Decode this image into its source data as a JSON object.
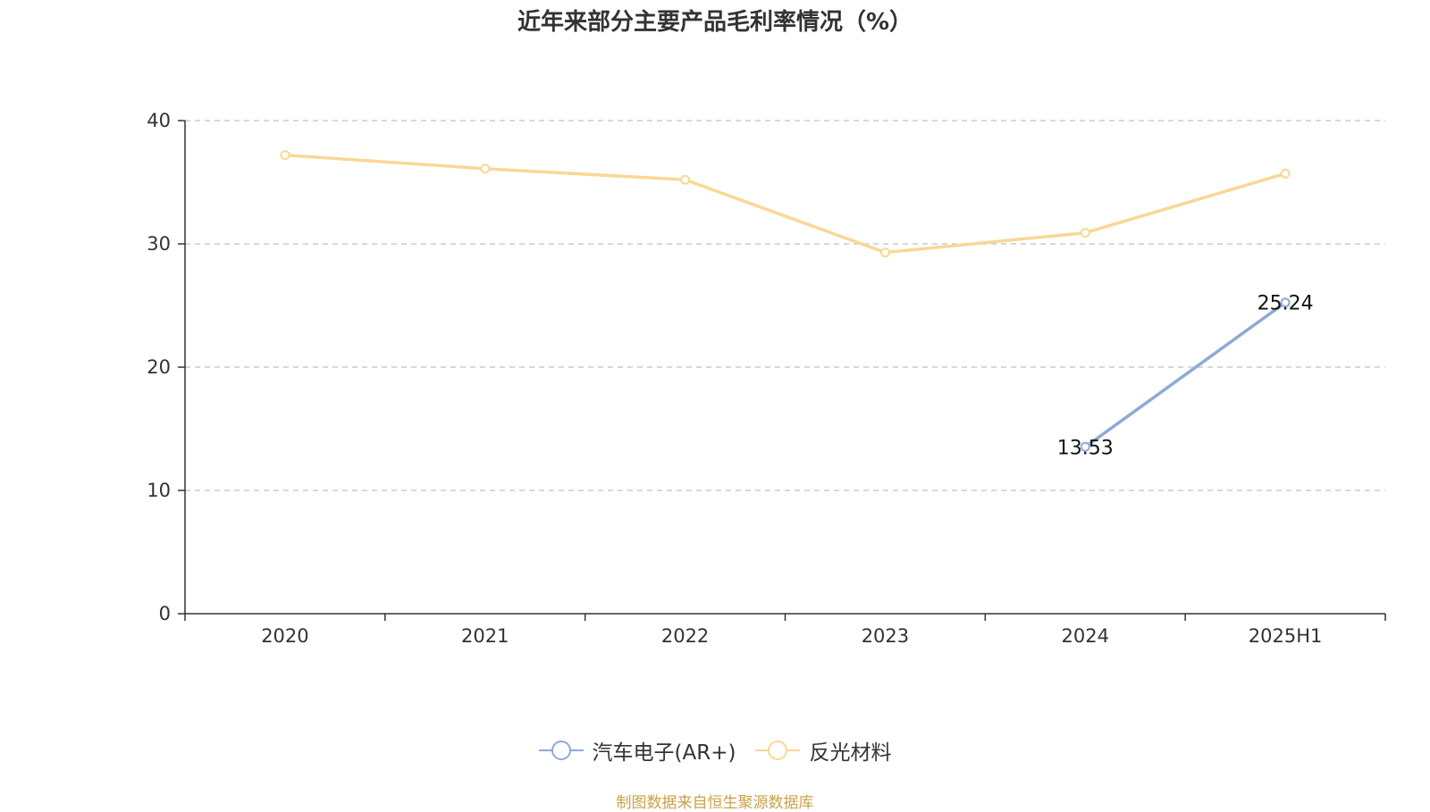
{
  "title": "近年来部分主要产品毛利率情况（%）",
  "source": "制图数据来自恒生聚源数据库",
  "chart_data": {
    "type": "line",
    "title": "近年来部分主要产品毛利率情况（%）",
    "categories": [
      "2020",
      "2021",
      "2022",
      "2023",
      "2024",
      "2025H1"
    ],
    "ylim": [
      0,
      40
    ],
    "yticks": [
      0,
      10,
      20,
      30,
      40
    ],
    "grid": true,
    "legend_position": "bottom",
    "series": [
      {
        "name": "汽车电子(AR+)",
        "color": "#8eaad6",
        "values": [
          null,
          null,
          null,
          null,
          13.53,
          25.24
        ],
        "show_labels": true
      },
      {
        "name": "反光材料",
        "color": "#fad796",
        "values": [
          37.2,
          36.1,
          35.2,
          29.3,
          30.9,
          35.7
        ],
        "show_labels": false
      }
    ]
  }
}
